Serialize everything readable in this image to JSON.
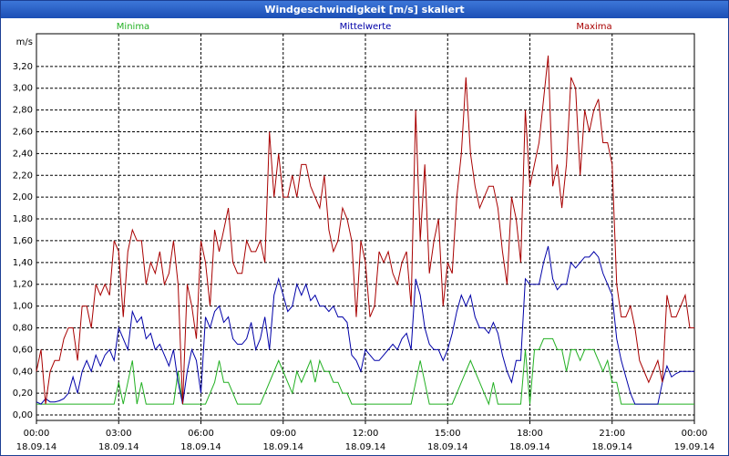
{
  "window_title": "Windgeschwindigkeit [m/s] skaliert",
  "chart_data": {
    "type": "line",
    "ylabel": "m/s",
    "xlim": [
      0,
      1440
    ],
    "ylim": [
      -0.05,
      3.5
    ],
    "grid": true,
    "yticks": [
      {
        "value": 0,
        "label": "0,00"
      },
      {
        "value": 0.2,
        "label": "0,20"
      },
      {
        "value": 0.4,
        "label": "0,40"
      },
      {
        "value": 0.6,
        "label": "0,60"
      },
      {
        "value": 0.8,
        "label": "0,80"
      },
      {
        "value": 1.0,
        "label": "1,00"
      },
      {
        "value": 1.2,
        "label": "1,20"
      },
      {
        "value": 1.4,
        "label": "1,40"
      },
      {
        "value": 1.6,
        "label": "1,60"
      },
      {
        "value": 1.8,
        "label": "1,80"
      },
      {
        "value": 2.0,
        "label": "2,00"
      },
      {
        "value": 2.2,
        "label": "2,20"
      },
      {
        "value": 2.4,
        "label": "2,40"
      },
      {
        "value": 2.6,
        "label": "2,60"
      },
      {
        "value": 2.8,
        "label": "2,80"
      },
      {
        "value": 3.0,
        "label": "3,00"
      },
      {
        "value": 3.2,
        "label": "3,20"
      }
    ],
    "xticks": [
      {
        "value": 0,
        "label": "00:00"
      },
      {
        "value": 180,
        "label": "03:00"
      },
      {
        "value": 360,
        "label": "06:00"
      },
      {
        "value": 540,
        "label": "09:00"
      },
      {
        "value": 720,
        "label": "12:00"
      },
      {
        "value": 900,
        "label": "15:00"
      },
      {
        "value": 1080,
        "label": "18:00"
      },
      {
        "value": 1260,
        "label": "21:00"
      },
      {
        "value": 1440,
        "label": "00:00"
      }
    ],
    "xtick_dates": [
      "18.09.14",
      "18.09.14",
      "18.09.14",
      "18.09.14",
      "18.09.14",
      "18.09.14",
      "18.09.14",
      "18.09.14",
      "19.09.14"
    ],
    "x": [
      0,
      10,
      20,
      30,
      40,
      50,
      60,
      70,
      80,
      90,
      100,
      110,
      120,
      130,
      140,
      150,
      160,
      170,
      180,
      190,
      200,
      210,
      220,
      230,
      240,
      250,
      260,
      270,
      280,
      290,
      300,
      310,
      320,
      330,
      340,
      350,
      360,
      370,
      380,
      390,
      400,
      410,
      420,
      430,
      440,
      450,
      460,
      470,
      480,
      490,
      500,
      510,
      520,
      530,
      540,
      550,
      560,
      570,
      580,
      590,
      600,
      610,
      620,
      630,
      640,
      650,
      660,
      670,
      680,
      690,
      700,
      710,
      720,
      730,
      740,
      750,
      760,
      770,
      780,
      790,
      800,
      810,
      820,
      830,
      840,
      850,
      860,
      870,
      880,
      890,
      900,
      910,
      920,
      930,
      940,
      950,
      960,
      970,
      980,
      990,
      1000,
      1010,
      1020,
      1030,
      1040,
      1050,
      1060,
      1070,
      1080,
      1090,
      1100,
      1110,
      1120,
      1130,
      1140,
      1150,
      1160,
      1170,
      1180,
      1190,
      1200,
      1210,
      1220,
      1230,
      1240,
      1250,
      1260,
      1270,
      1280,
      1290,
      1300,
      1310,
      1320,
      1330,
      1340,
      1350,
      1360,
      1370,
      1380,
      1390,
      1400,
      1410,
      1420,
      1430,
      1440
    ],
    "series": [
      {
        "name": "Minima",
        "color": "#22b022",
        "values": [
          0.1,
          0.1,
          0.1,
          0.1,
          0.1,
          0.1,
          0.1,
          0.1,
          0.1,
          0.1,
          0.1,
          0.1,
          0.1,
          0.1,
          0.1,
          0.1,
          0.1,
          0.1,
          0.3,
          0.1,
          0.3,
          0.5,
          0.1,
          0.3,
          0.1,
          0.1,
          0.1,
          0.1,
          0.1,
          0.1,
          0.1,
          0.4,
          0.1,
          0.1,
          0.1,
          0.1,
          0.1,
          0.1,
          0.2,
          0.3,
          0.5,
          0.3,
          0.3,
          0.2,
          0.1,
          0.1,
          0.1,
          0.1,
          0.1,
          0.1,
          0.2,
          0.3,
          0.4,
          0.5,
          0.4,
          0.3,
          0.2,
          0.4,
          0.3,
          0.4,
          0.5,
          0.3,
          0.5,
          0.4,
          0.4,
          0.3,
          0.3,
          0.2,
          0.2,
          0.1,
          0.1,
          0.1,
          0.1,
          0.1,
          0.1,
          0.1,
          0.1,
          0.1,
          0.1,
          0.1,
          0.1,
          0.1,
          0.1,
          0.3,
          0.5,
          0.3,
          0.1,
          0.1,
          0.1,
          0.1,
          0.1,
          0.1,
          0.2,
          0.3,
          0.4,
          0.5,
          0.4,
          0.3,
          0.2,
          0.1,
          0.3,
          0.1,
          0.1,
          0.1,
          0.1,
          0.1,
          0.1,
          0.6,
          0.1,
          0.6,
          0.6,
          0.7,
          0.7,
          0.7,
          0.6,
          0.6,
          0.4,
          0.6,
          0.6,
          0.5,
          0.6,
          0.6,
          0.6,
          0.5,
          0.4,
          0.5,
          0.3,
          0.3,
          0.1,
          0.1,
          0.1,
          0.1,
          0.1,
          0.1,
          0.1,
          0.1,
          0.1,
          0.1,
          0.1,
          0.1,
          0.1,
          0.1,
          0.1,
          0.1,
          0.1
        ]
      },
      {
        "name": "Mittelwerte",
        "color": "#0000a8",
        "values": [
          0.12,
          0.1,
          0.15,
          0.12,
          0.12,
          0.13,
          0.15,
          0.2,
          0.35,
          0.2,
          0.4,
          0.5,
          0.4,
          0.55,
          0.45,
          0.55,
          0.6,
          0.5,
          0.8,
          0.7,
          0.6,
          0.95,
          0.85,
          0.9,
          0.7,
          0.75,
          0.6,
          0.65,
          0.55,
          0.45,
          0.6,
          0.3,
          0.1,
          0.4,
          0.6,
          0.5,
          0.2,
          0.9,
          0.8,
          0.95,
          1.0,
          0.85,
          0.9,
          0.7,
          0.65,
          0.65,
          0.7,
          0.85,
          0.6,
          0.7,
          0.9,
          0.6,
          1.1,
          1.25,
          1.1,
          0.95,
          1.0,
          1.2,
          1.1,
          1.2,
          1.05,
          1.1,
          1.0,
          1.0,
          0.95,
          1.0,
          0.9,
          0.9,
          0.85,
          0.55,
          0.5,
          0.4,
          0.6,
          0.55,
          0.5,
          0.5,
          0.55,
          0.6,
          0.65,
          0.6,
          0.7,
          0.75,
          0.6,
          1.25,
          1.1,
          0.8,
          0.65,
          0.6,
          0.6,
          0.5,
          0.6,
          0.75,
          0.95,
          1.1,
          1.0,
          1.1,
          0.9,
          0.8,
          0.8,
          0.75,
          0.85,
          0.75,
          0.55,
          0.4,
          0.3,
          0.5,
          0.5,
          1.25,
          1.2,
          1.2,
          1.2,
          1.4,
          1.55,
          1.25,
          1.15,
          1.2,
          1.2,
          1.4,
          1.35,
          1.4,
          1.45,
          1.45,
          1.5,
          1.45,
          1.3,
          1.2,
          1.1,
          0.7,
          0.5,
          0.35,
          0.2,
          0.1,
          0.1,
          0.1,
          0.1,
          0.1,
          0.1,
          0.3,
          0.45,
          0.35,
          0.38,
          0.4,
          0.4,
          0.4,
          0.4
        ]
      },
      {
        "name": "Maxima",
        "color": "#a80000",
        "values": [
          0.4,
          0.6,
          0.1,
          0.4,
          0.5,
          0.5,
          0.7,
          0.8,
          0.8,
          0.5,
          1.0,
          1.0,
          0.8,
          1.2,
          1.1,
          1.2,
          1.1,
          1.6,
          1.5,
          0.9,
          1.5,
          1.7,
          1.6,
          1.6,
          1.2,
          1.4,
          1.3,
          1.5,
          1.2,
          1.3,
          1.6,
          1.2,
          0.1,
          1.2,
          1.0,
          0.7,
          1.6,
          1.4,
          1.0,
          1.7,
          1.5,
          1.7,
          1.9,
          1.4,
          1.3,
          1.3,
          1.6,
          1.5,
          1.5,
          1.6,
          1.4,
          2.6,
          2.0,
          2.4,
          2.0,
          2.0,
          2.2,
          2.0,
          2.3,
          2.3,
          2.1,
          2.0,
          1.9,
          2.2,
          1.7,
          1.5,
          1.6,
          1.9,
          1.8,
          1.6,
          0.9,
          1.6,
          1.4,
          0.9,
          1.0,
          1.5,
          1.4,
          1.5,
          1.3,
          1.2,
          1.4,
          1.5,
          1.0,
          2.8,
          1.6,
          2.3,
          1.3,
          1.6,
          1.8,
          1.0,
          1.4,
          1.3,
          2.0,
          2.4,
          3.1,
          2.4,
          2.1,
          1.9,
          2.0,
          2.1,
          2.1,
          1.9,
          1.5,
          1.2,
          2.0,
          1.8,
          1.4,
          2.8,
          2.1,
          2.3,
          2.5,
          2.9,
          3.3,
          2.1,
          2.3,
          1.9,
          2.3,
          3.1,
          3.0,
          2.2,
          2.8,
          2.6,
          2.8,
          2.9,
          2.5,
          2.5,
          2.3,
          1.2,
          0.9,
          0.9,
          1.0,
          0.8,
          0.5,
          0.4,
          0.3,
          0.4,
          0.5,
          0.3,
          1.1,
          0.9,
          0.9,
          1.0,
          1.1,
          0.8,
          0.8
        ]
      }
    ]
  }
}
